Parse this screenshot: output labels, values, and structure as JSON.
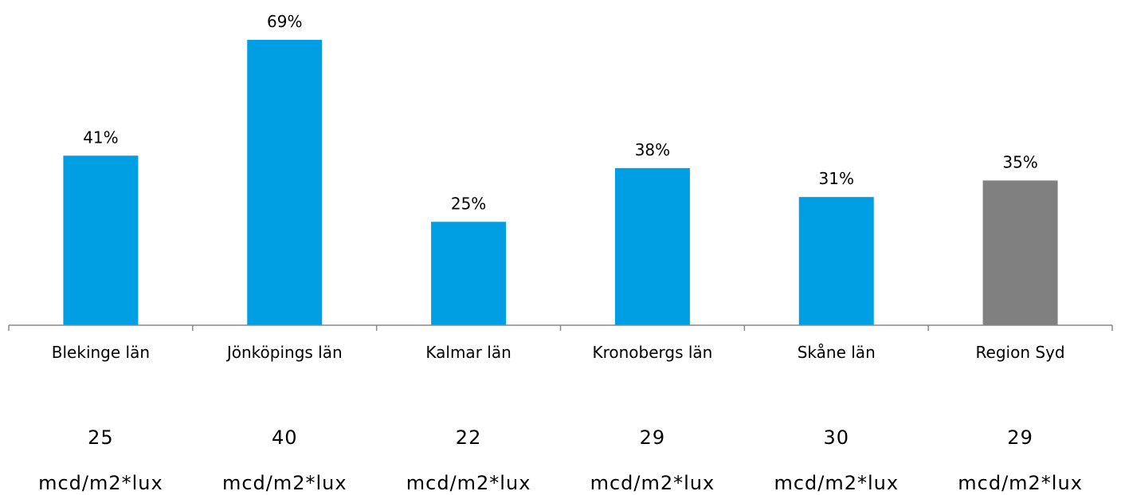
{
  "chart_data": {
    "type": "bar",
    "categories": [
      "Blekinge län",
      "Jönköpings län",
      "Kalmar län",
      "Kronobergs län",
      "Skåne län",
      "Region Syd"
    ],
    "values": [
      41,
      69,
      25,
      38,
      31,
      35
    ],
    "data_labels": [
      "41%",
      "69%",
      "25%",
      "38%",
      "31%",
      "35%"
    ],
    "bar_colors": [
      "#009fe3",
      "#009fe3",
      "#009fe3",
      "#009fe3",
      "#009fe3",
      "#808080"
    ],
    "ylim": [
      0,
      69
    ],
    "grid": false,
    "legend": "none",
    "title": "",
    "xlabel": "",
    "ylabel": ""
  },
  "footer": {
    "values": [
      "25",
      "40",
      "22",
      "29",
      "30",
      "29"
    ],
    "unit": "mcd/m2*lux"
  }
}
